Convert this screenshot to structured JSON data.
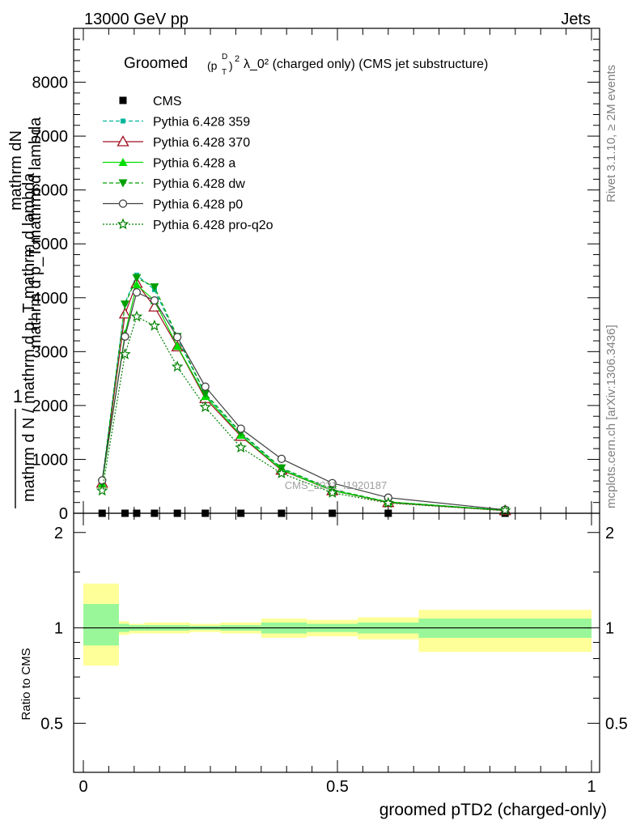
{
  "header": {
    "left": "13000 GeV pp",
    "right": "Jets"
  },
  "side_labels": {
    "rivet": "Rivet 3.1.10, ≥ 2M events",
    "mcplots": "mcplots.cern.ch [arXiv:1306.3436]"
  },
  "chart_data": [
    {
      "type": "line",
      "title_prefix": "Groomed",
      "title_suffix": "λ_0²  (charged only) (CMS jet substructure)",
      "ylabel_numerator": "1",
      "ylabel_line1": "mathrm d N / mathrm d p_T mathrm d lambda",
      "ylabel_line2": "mathrm dN",
      "ylabel_line3": "mathrm d p_T mathrm d lambda",
      "watermark": "CMS_2021_I1920187",
      "xlim": [
        0,
        1
      ],
      "ylim": [
        0,
        9000
      ],
      "yticks": [
        0,
        1000,
        2000,
        3000,
        4000,
        5000,
        6000,
        7000,
        8000
      ],
      "ytick_labels": [
        "0",
        "1000",
        "2000",
        "3000",
        "4000",
        "5000",
        "6000",
        "7000",
        "8000"
      ],
      "x": [
        0.037,
        0.082,
        0.105,
        0.14,
        0.185,
        0.24,
        0.31,
        0.39,
        0.49,
        0.6,
        0.83
      ],
      "series": [
        {
          "name": "CMS",
          "color": "#000000",
          "marker": "square",
          "dash": "none",
          "values": [
            0,
            0,
            0,
            0,
            0,
            0,
            0,
            0,
            0,
            0,
            0
          ]
        },
        {
          "name": "Pythia 6.428 359",
          "color": "#00b59a",
          "marker": "small-square",
          "dash": "dash",
          "values": [
            600,
            3900,
            4420,
            4150,
            3250,
            2200,
            1480,
            830,
            430,
            210,
            55
          ]
        },
        {
          "name": "Pythia 6.428 370",
          "color": "#a01020",
          "marker": "open-triangle",
          "dash": "none",
          "values": [
            560,
            3700,
            4270,
            3830,
            3090,
            2130,
            1430,
            800,
            420,
            200,
            50
          ]
        },
        {
          "name": "Pythia 6.428 a",
          "color": "#00dd00",
          "marker": "triangle",
          "dash": "none",
          "values": [
            550,
            3330,
            4240,
            3950,
            3100,
            2170,
            1450,
            810,
            420,
            210,
            55
          ]
        },
        {
          "name": "Pythia 6.428 dw",
          "color": "#00a000",
          "marker": "down-triangle",
          "dash": "dash",
          "values": [
            560,
            3880,
            4370,
            4200,
            3280,
            2220,
            1500,
            840,
            440,
            210,
            55
          ]
        },
        {
          "name": "Pythia 6.428 p0",
          "color": "#404040",
          "marker": "open-circle",
          "dash": "none",
          "values": [
            610,
            3280,
            4100,
            3950,
            3270,
            2350,
            1570,
            1010,
            560,
            290,
            65
          ]
        },
        {
          "name": "Pythia 6.428 pro-q2o",
          "color": "#008000",
          "marker": "star",
          "dash": "dot",
          "values": [
            420,
            2950,
            3650,
            3480,
            2720,
            1970,
            1220,
            740,
            380,
            190,
            50
          ]
        }
      ]
    },
    {
      "type": "area",
      "ylabel": "Ratio to CMS",
      "xlabel": "groomed pTD2 (charged-only)",
      "xlim": [
        0,
        1
      ],
      "ylim": [
        0.35,
        2.3
      ],
      "yticks": [
        0.5,
        1,
        2
      ],
      "ytick_labels": [
        "0.5",
        "1",
        "2"
      ],
      "xticks": [
        0,
        0.5,
        1
      ],
      "xtick_labels": [
        "0",
        "0.5",
        "1"
      ],
      "bins": [
        {
          "x0": 0.0,
          "x1": 0.07,
          "inner": [
            0.88,
            1.19
          ],
          "outer": [
            0.76,
            1.38
          ]
        },
        {
          "x0": 0.07,
          "x1": 0.09,
          "inner": [
            0.97,
            1.03
          ],
          "outer": [
            0.95,
            1.05
          ]
        },
        {
          "x0": 0.09,
          "x1": 0.12,
          "inner": [
            0.98,
            1.02
          ],
          "outer": [
            0.96,
            1.03
          ]
        },
        {
          "x0": 0.12,
          "x1": 0.21,
          "inner": [
            0.98,
            1.02
          ],
          "outer": [
            0.96,
            1.04
          ]
        },
        {
          "x0": 0.21,
          "x1": 0.27,
          "inner": [
            0.985,
            1.015
          ],
          "outer": [
            0.97,
            1.03
          ]
        },
        {
          "x0": 0.27,
          "x1": 0.35,
          "inner": [
            0.98,
            1.02
          ],
          "outer": [
            0.96,
            1.04
          ]
        },
        {
          "x0": 0.35,
          "x1": 0.44,
          "inner": [
            0.96,
            1.04
          ],
          "outer": [
            0.93,
            1.07
          ]
        },
        {
          "x0": 0.44,
          "x1": 0.54,
          "inner": [
            0.97,
            1.03
          ],
          "outer": [
            0.94,
            1.06
          ]
        },
        {
          "x0": 0.54,
          "x1": 0.66,
          "inner": [
            0.96,
            1.04
          ],
          "outer": [
            0.92,
            1.08
          ]
        },
        {
          "x0": 0.66,
          "x1": 1.0,
          "inner": [
            0.93,
            1.07
          ],
          "outer": [
            0.84,
            1.14
          ]
        }
      ],
      "reference": 1,
      "colors": {
        "inner": "#99f799",
        "outer": "#ffff99"
      }
    }
  ]
}
